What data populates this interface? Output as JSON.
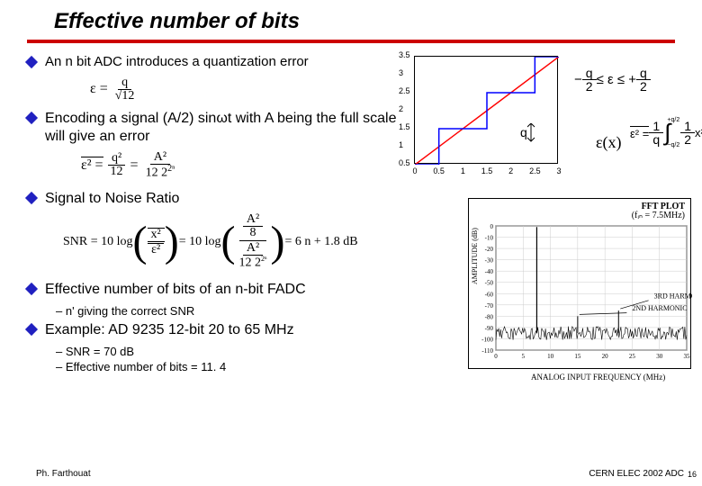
{
  "title": "Effective number of bits",
  "bullets": {
    "b1": "An n bit ADC introduces a quantization error",
    "b2": "Encoding a signal (A/2) sinωt with A being the full scale will give an error",
    "b3": "Signal to Noise Ratio",
    "b4": "Effective number of bits of an n-bit FADC",
    "b4s1": "– n' giving the correct SNR",
    "b5": "Example: AD 9235 12-bit 20 to 65 MHz",
    "b5s1": "– SNR = 70 dB",
    "b5s2": "– Effective number of bits = 11. 4"
  },
  "formulas": {
    "f1_lhs": "ε =",
    "f1_num": "q",
    "f1_den": "√12",
    "f2_left": "ε² =",
    "f2a_num": "q²",
    "f2a_den": "12",
    "f2b_num": "A²",
    "f2b_dena": "12",
    "f2b_denb": "2ⁿ",
    "snr_left": "SNR = 10 log",
    "snr_inner_num": "x²",
    "snr_inner_den": "ε²",
    "snr_mid": "= 10 log",
    "snr_p2_num": "A²",
    "snr_p2_num2": "8",
    "snr_p2_den": "A²",
    "snr_p2_den2a": "12",
    "snr_p2_den2b": "2ⁿ",
    "snr_right": "= 6 n + 1.8 dB"
  },
  "upper_chart": {
    "xticks": [
      "0",
      "0.5",
      "1",
      "1.5",
      "2",
      "2.5",
      "3"
    ],
    "yticks": [
      "0.5",
      "1",
      "1.5",
      "2",
      "2.5",
      "3",
      "3.5"
    ],
    "line_color": "#ff0000",
    "step_color": "#0000ff",
    "ann_q": "q",
    "ann_eps": "ε(x)"
  },
  "side_eq": {
    "left": "−",
    "lhs_num": "q",
    "lhs_den": "2",
    "mid": " ≤ ε ≤ +",
    "rhs_num": "q",
    "rhs_den": "2",
    "int_left": "ε² =",
    "int_num": "1",
    "int_den": "q",
    "int_text": "∫",
    "int_body_num": "1",
    "int_body_den": "2",
    "int_body": "x² dx",
    "int_lo": "−q/2",
    "int_hi": "+q/2"
  },
  "fft": {
    "title1": "FFT PLOT",
    "title2": "(fᵢₙ = 7.5MHz)",
    "ylabel": "AMPLITUDE (dB)",
    "xlabel": "ANALOG INPUT FREQUENCY (MHz)",
    "yticks": [
      "0",
      "-10",
      "-20",
      "-30",
      "-40",
      "-50",
      "-60",
      "-70",
      "-80",
      "-90",
      "-100",
      "-110"
    ],
    "xticks": [
      "0",
      "5",
      "10",
      "15",
      "20",
      "25",
      "30",
      "35"
    ],
    "ann_3rd": "3RD HARMONIC",
    "ann_2nd": "2ND HARMONIC",
    "noise_floor": -95,
    "noise_amp": 6,
    "fundamental_x": 7.5,
    "fundamental_y": -1,
    "h2_x": 15,
    "h2_y": -80,
    "h3_x": 22.5,
    "h3_y": -75
  },
  "footer": {
    "left": "Ph. Farthouat",
    "right": "CERN ELEC 2002 ADC",
    "page": "16"
  },
  "colors": {
    "rule": "#cc0000",
    "diamond": "#2020c0"
  }
}
